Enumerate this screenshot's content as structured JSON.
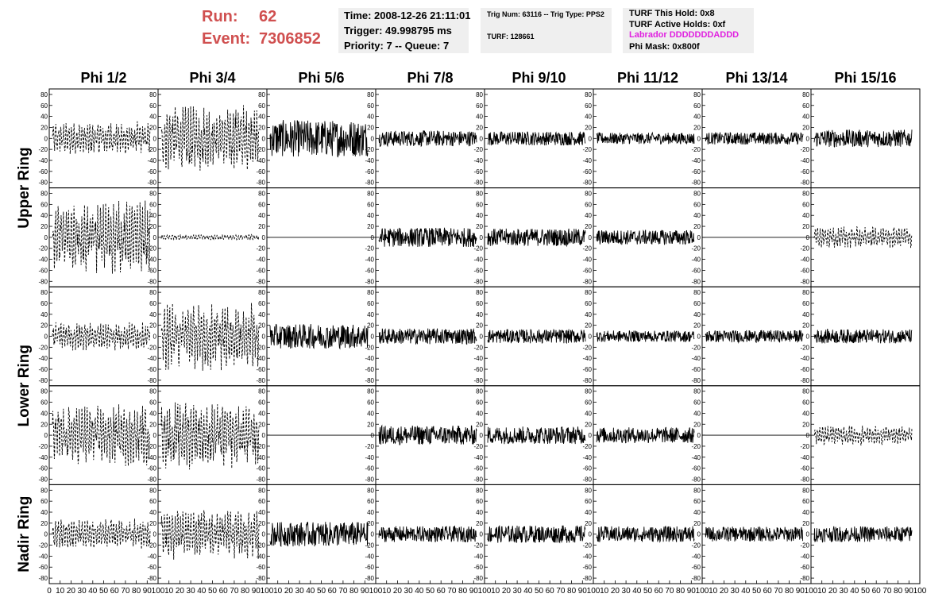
{
  "header": {
    "run_label": "Run:",
    "run_value": "62",
    "event_label": "Event:",
    "event_value": "7306852",
    "time": "Time: 2008-12-26 21:11:01",
    "trigger": "Trigger: 49.998795 ms",
    "priority": "Priority: 7 -- Queue: 7",
    "trig_info": "Trig Num: 63116 -- Trig Type: PPS2",
    "turf": "TURF: 128661",
    "turf_this_hold": "TURF This Hold: 0x8",
    "turf_active_holds": "TURF Active Holds: 0xf",
    "labrador": "Labrador DDDDDDDADDD",
    "phi_mask": "Phi Mask: 0x800f",
    "colors": {
      "run": "#d05050",
      "labrador": "#e020e0",
      "panel_bg": "#efefef"
    }
  },
  "chart_data": {
    "type": "line",
    "columns": [
      "Phi 1/2",
      "Phi 3/4",
      "Phi 5/6",
      "Phi 7/8",
      "Phi 9/10",
      "Phi 11/12",
      "Phi 13/14",
      "Phi 15/16"
    ],
    "row_groups": [
      {
        "label": "Upper Ring",
        "rows": [
          0,
          1
        ]
      },
      {
        "label": "Lower Ring",
        "rows": [
          2,
          3
        ]
      },
      {
        "label": "Nadir Ring",
        "rows": [
          4
        ]
      }
    ],
    "ylim": [
      -90,
      90
    ],
    "yticks": [
      -80,
      -60,
      -40,
      -20,
      0,
      20,
      40,
      60,
      80
    ],
    "xlim": [
      0,
      100
    ],
    "xticks": [
      0,
      10,
      20,
      30,
      40,
      50,
      60,
      70,
      80,
      90,
      100
    ],
    "xtick_labels_bottom": "0 10 20 30 40 50 60 70 80 90 100",
    "samples": 260,
    "dashed_style": "dashed",
    "solid_style": "solid",
    "panels": [
      [
        {
          "style": "dashed",
          "amp": 30
        },
        {
          "style": "dashed",
          "amp": 60
        },
        {
          "style": "solid",
          "amp": 42
        },
        {
          "style": "solid",
          "amp": 18
        },
        {
          "style": "solid",
          "amp": 16
        },
        {
          "style": "solid",
          "amp": 13
        },
        {
          "style": "solid",
          "amp": 14
        },
        {
          "style": "solid",
          "amp": 20
        }
      ],
      [
        {
          "style": "dashed",
          "amp": 65
        },
        {
          "style": "dashed",
          "amp": 5
        },
        {
          "style": "flat",
          "amp": 0
        },
        {
          "style": "solid",
          "amp": 22
        },
        {
          "style": "solid",
          "amp": 20
        },
        {
          "style": "solid",
          "amp": 17
        },
        {
          "style": "flat",
          "amp": 0
        },
        {
          "style": "dashed",
          "amp": 20
        }
      ],
      [
        {
          "style": "dashed",
          "amp": 25
        },
        {
          "style": "dashed",
          "amp": 60
        },
        {
          "style": "solid",
          "amp": 28
        },
        {
          "style": "solid",
          "amp": 18
        },
        {
          "style": "solid",
          "amp": 16
        },
        {
          "style": "solid",
          "amp": 13
        },
        {
          "style": "solid",
          "amp": 14
        },
        {
          "style": "solid",
          "amp": 16
        }
      ],
      [
        {
          "style": "dashed",
          "amp": 55
        },
        {
          "style": "dashed",
          "amp": 60
        },
        {
          "style": "flat",
          "amp": 0
        },
        {
          "style": "solid",
          "amp": 22
        },
        {
          "style": "solid",
          "amp": 20
        },
        {
          "style": "solid",
          "amp": 18
        },
        {
          "style": "flat",
          "amp": 0
        },
        {
          "style": "dashed",
          "amp": 18
        }
      ],
      [
        {
          "style": "dashed",
          "amp": 28
        },
        {
          "style": "dashed",
          "amp": 45
        },
        {
          "style": "solid",
          "amp": 28
        },
        {
          "style": "solid",
          "amp": 18
        },
        {
          "style": "solid",
          "amp": 20
        },
        {
          "style": "solid",
          "amp": 18
        },
        {
          "style": "solid",
          "amp": 17
        },
        {
          "style": "solid",
          "amp": 18
        }
      ]
    ]
  }
}
